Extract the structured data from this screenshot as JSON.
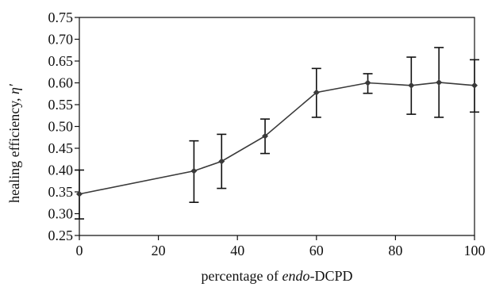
{
  "chart_data": {
    "type": "line",
    "xlabel_parts": [
      "percentage of ",
      "endo",
      "-DCPD"
    ],
    "ylabel_parts": [
      "healing efficiency, ",
      "η′"
    ],
    "xlim": [
      0,
      100
    ],
    "ylim": [
      0.25,
      0.75
    ],
    "x_ticks": [
      "0",
      "20",
      "40",
      "60",
      "80",
      "100"
    ],
    "y_ticks": [
      "0.25",
      "0.30",
      "0.35",
      "0.40",
      "0.45",
      "0.50",
      "0.55",
      "0.60",
      "0.65",
      "0.70",
      "0.75"
    ],
    "grid": false,
    "series": [
      {
        "x": [
          0,
          29,
          36,
          47,
          60,
          73,
          84,
          91,
          100
        ],
        "y": [
          0.345,
          0.398,
          0.42,
          0.478,
          0.578,
          0.6,
          0.594,
          0.601,
          0.594
        ],
        "err_low": [
          0.288,
          0.326,
          0.358,
          0.438,
          0.521,
          0.576,
          0.528,
          0.521,
          0.533
        ],
        "err_high": [
          0.4,
          0.467,
          0.482,
          0.517,
          0.633,
          0.621,
          0.659,
          0.681,
          0.653
        ]
      }
    ],
    "colors": {
      "line": "#3a3a3a",
      "axis": "#111111"
    }
  }
}
